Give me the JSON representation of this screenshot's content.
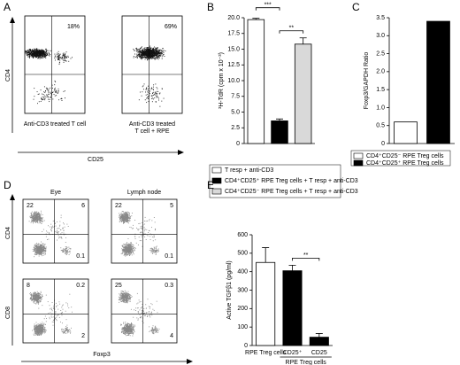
{
  "figure": {
    "panel_labels": [
      "A",
      "B",
      "C",
      "D",
      "E"
    ],
    "A": {
      "y_label": "CD4",
      "x_label": "CD25",
      "plots": [
        {
          "percent": "18%",
          "caption": [
            "Anti-CD3 treated T cell"
          ]
        },
        {
          "percent": "69%",
          "caption": [
            "Anti-CD3 treated",
            "T cell + RPE"
          ]
        }
      ]
    },
    "D": {
      "columns": [
        "Eye",
        "Lymph node"
      ],
      "rows": [
        "CD4",
        "CD8"
      ],
      "x_label": "Foxp3",
      "plots": [
        {
          "upper_left": 22,
          "upper_right": 6,
          "lower_right": 0.1
        },
        {
          "upper_left": 22,
          "upper_right": 5,
          "lower_right": 0.1
        },
        {
          "upper_left": 8,
          "upper_right": 0.2,
          "lower_right": 2
        },
        {
          "upper_left": 25,
          "upper_right": 0.3,
          "lower_right": 4
        }
      ]
    }
  },
  "chart_data": [
    {
      "type": "bar",
      "y_label": "³H-TdR (cpm x 10⁻³)",
      "categories": [
        "T resp + anti-CD3",
        "CD4⁺CD25⁺ RPE Treg cells + T resp + anti-CD3",
        "CD4⁺CD25⁻ RPE Treg cells + T resp + anti-CD3"
      ],
      "values": [
        19.7,
        3.6,
        15.8
      ],
      "errors": [
        0.2,
        0.3,
        1.0
      ],
      "colors": [
        "#ffffff",
        "#000000",
        "#d9d9d9"
      ],
      "ylim": [
        0,
        20
      ],
      "yticks": [
        0,
        2.5,
        {
          "value": 5,
          "label": "5.0"
        },
        7.5,
        {
          "value": 10,
          "label": "10.0"
        },
        12.5,
        {
          "value": 15,
          "label": "15.0"
        },
        17.5,
        {
          "value": 20,
          "label": "20.0"
        }
      ],
      "annotations": [
        "***",
        "**"
      ]
    },
    {
      "type": "bar",
      "y_label": "Foxp3/GAPDH Ratio",
      "categories": [
        "CD4⁺CD25⁻ RPE Treg cells",
        "CD4⁺CD25⁺ RPE Treg cells"
      ],
      "values": [
        0.6,
        3.4
      ],
      "colors": [
        "#ffffff",
        "#000000"
      ],
      "ylim": [
        0,
        3.5
      ],
      "yticks": [
        0,
        0.5,
        {
          "value": 1,
          "label": "1.0"
        },
        1.5,
        {
          "value": 2,
          "label": "2.0"
        },
        2.5,
        {
          "value": 3,
          "label": "3.0"
        },
        3.5
      ]
    },
    {
      "type": "bar",
      "y_label": "Active TGFβ1 (pg/ml)",
      "categories": [
        "RPE Treg cells",
        "CD25⁺",
        "CD25"
      ],
      "group_label": "RPE Treg cells",
      "values": [
        450,
        405,
        45
      ],
      "errors": [
        80,
        30,
        20
      ],
      "colors": [
        "#ffffff",
        "#000000",
        "#000000"
      ],
      "ylim": [
        0,
        600
      ],
      "yticks": [
        0,
        100,
        200,
        300,
        400,
        500,
        600
      ],
      "annotations": [
        "**"
      ]
    }
  ]
}
